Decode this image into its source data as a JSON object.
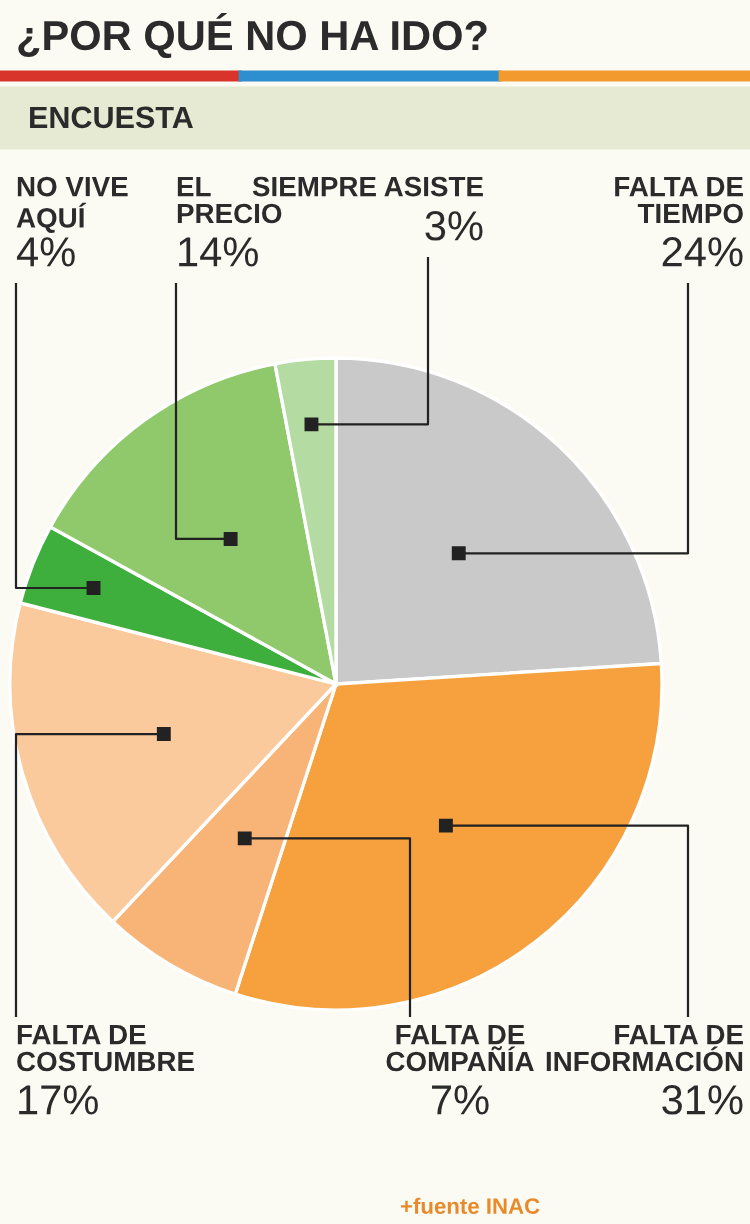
{
  "chart_data": {
    "type": "pie",
    "title": "¿POR QUÉ NO HA IDO?",
    "subtitle": "ENCUESTA",
    "categories": [
      "FALTA DE\nTIEMPO",
      "FALTA DE\nINFORMACIÓN",
      "FALTA DE\nCOMPAÑÍA",
      "FALTA DE\nCOSTUMBRE",
      "NO VIVE\nAQUÍ",
      "EL\nPRECIO",
      "SIEMPRE ASISTE"
    ],
    "values": [
      24,
      31,
      7,
      17,
      4,
      14,
      3
    ],
    "value_labels": [
      "24%",
      "31%",
      "7%",
      "17%",
      "4%",
      "14%",
      "3%"
    ],
    "colors": [
      "#c9c9c9",
      "#f6a13d",
      "#f8b376",
      "#fbca9c",
      "#3eae3c",
      "#8fc96b",
      "#b4dca2"
    ],
    "annotations": [
      "+fuente INAC"
    ]
  }
}
